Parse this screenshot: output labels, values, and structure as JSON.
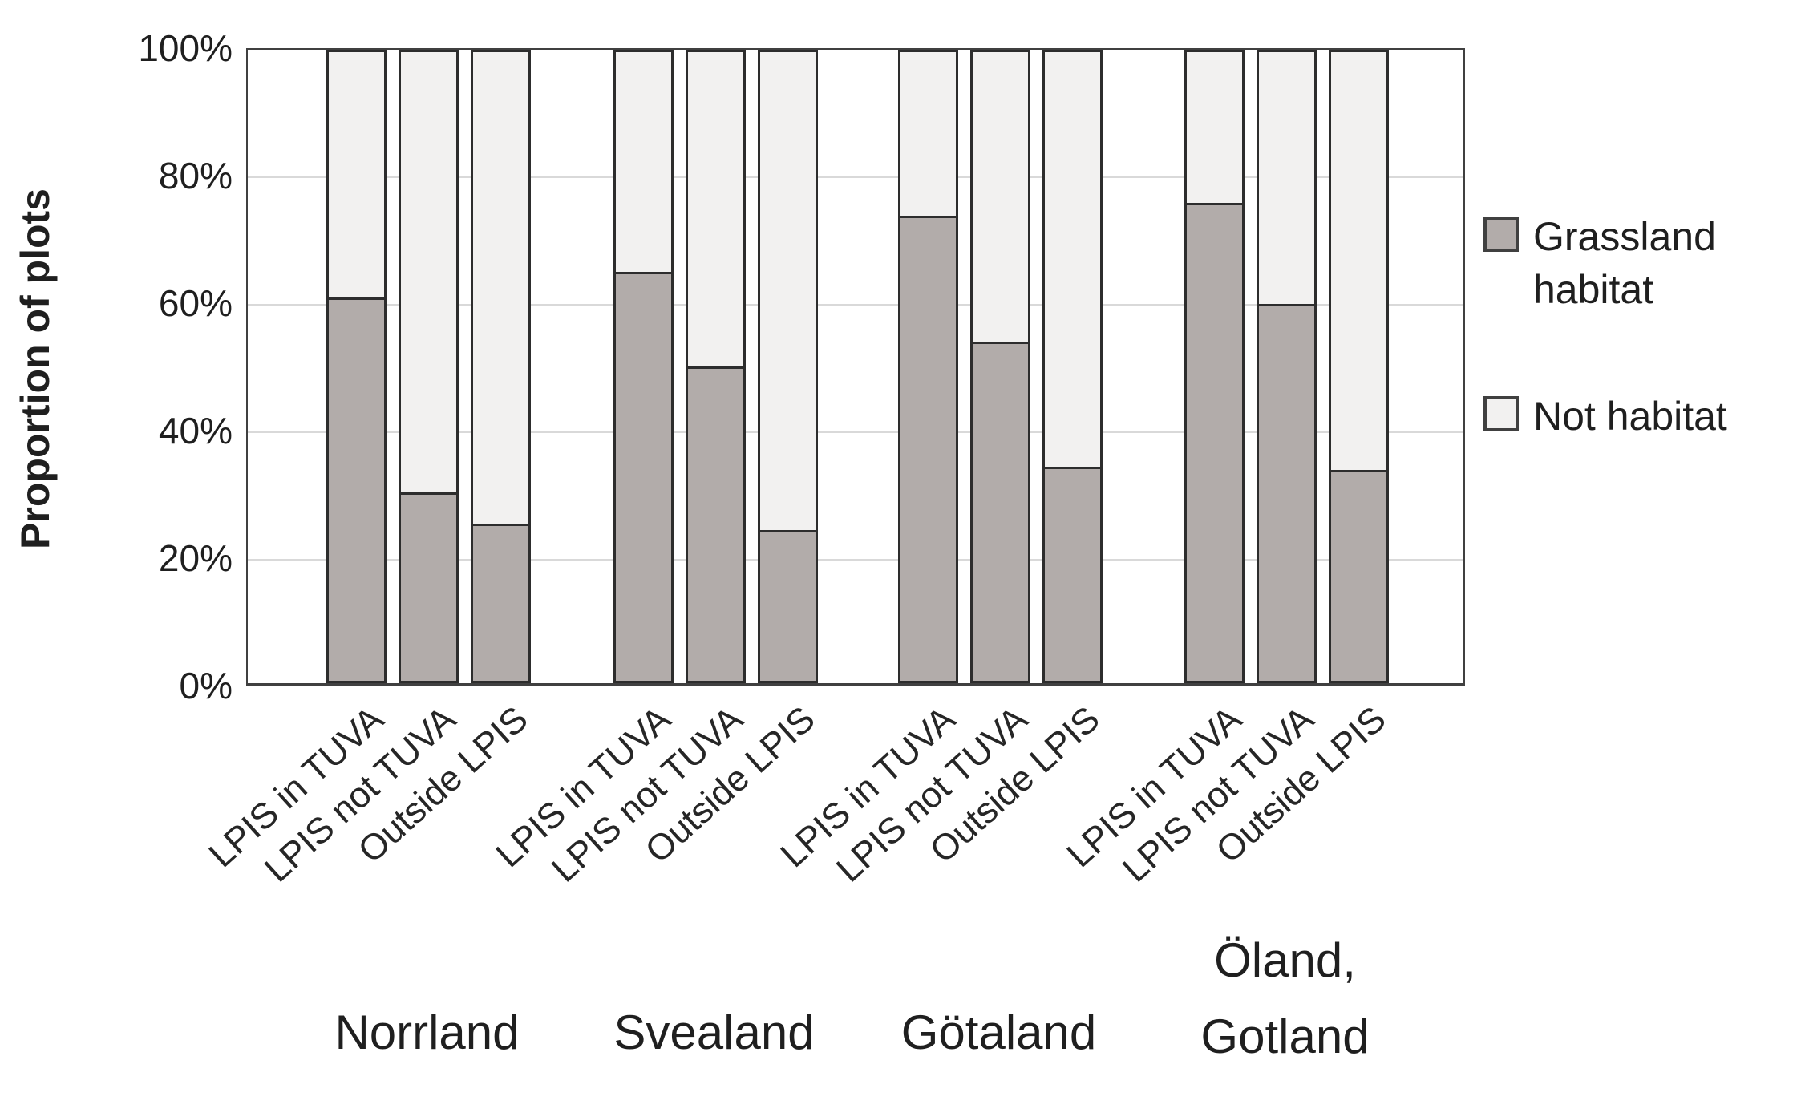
{
  "chart_data": {
    "type": "bar",
    "stacked": true,
    "percent_stacked": true,
    "title": "",
    "ylabel": "Proportion of plots",
    "xlabel": "",
    "ylim": [
      0,
      100
    ],
    "grid": true,
    "legend_position": "right",
    "yticks": [
      {
        "label": "0%",
        "value": 0
      },
      {
        "label": "20%",
        "value": 20
      },
      {
        "label": "40%",
        "value": 40
      },
      {
        "label": "60%",
        "value": 60
      },
      {
        "label": "80%",
        "value": 80
      },
      {
        "label": "100%",
        "value": 100
      }
    ],
    "categories_per_group": [
      "LPIS in TUVA",
      "LPIS not TUVA",
      "Outside LPIS"
    ],
    "groups": [
      "Norrland",
      "Svealand",
      "Götaland",
      "Öland,\nGotland"
    ],
    "series": [
      {
        "name": "Grassland habitat",
        "color": "#b2acaa",
        "values": [
          [
            61,
            30,
            25
          ],
          [
            65,
            50,
            24
          ],
          [
            74,
            54,
            34
          ],
          [
            76,
            60,
            33.5
          ]
        ]
      },
      {
        "name": "Not habitat",
        "color": "#f2f1f0",
        "values": [
          [
            39,
            70,
            75
          ],
          [
            35,
            50,
            76
          ],
          [
            26,
            46,
            66
          ],
          [
            24,
            40,
            66.5
          ]
        ]
      }
    ]
  },
  "colors": {
    "bar_border": "#2d2d2d",
    "axis_border": "#404040",
    "gridline": "#d9d9d9",
    "text": "#1f1f1f",
    "background": "#ffffff"
  }
}
